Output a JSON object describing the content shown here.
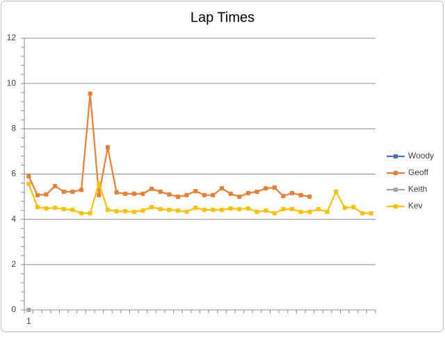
{
  "chart_data": {
    "type": "line",
    "title": "Lap Times",
    "categories": [
      "1",
      null,
      null,
      null,
      null,
      null,
      null,
      null,
      null,
      null,
      null,
      null,
      null,
      null,
      null,
      null,
      null,
      null,
      null,
      null,
      null,
      null,
      null,
      null,
      null,
      null,
      null,
      null,
      null,
      null,
      null,
      null,
      null,
      null,
      null,
      null,
      null,
      null,
      null,
      null
    ],
    "ylim": [
      0,
      12
    ],
    "yticks": [
      0,
      2,
      4,
      6,
      8,
      10,
      12
    ],
    "grid": true,
    "legend": "right",
    "series": [
      {
        "name": "Woody",
        "color": "#4472c4",
        "values": [
          null,
          null,
          null,
          null,
          null,
          null,
          null,
          null,
          null,
          null,
          null,
          null,
          null,
          null,
          null,
          null,
          null,
          null,
          null,
          null,
          null,
          null,
          null,
          null,
          null,
          null,
          null,
          null,
          null,
          null,
          null,
          null,
          null,
          null,
          null,
          null,
          null,
          null,
          null,
          null
        ]
      },
      {
        "name": "Geoff",
        "color": "#ed7d31",
        "values": [
          5.9,
          5.07,
          5.1,
          5.47,
          5.22,
          5.22,
          5.3,
          9.55,
          5.07,
          7.18,
          5.19,
          5.13,
          5.13,
          5.13,
          5.35,
          5.22,
          5.1,
          5.0,
          5.07,
          5.25,
          5.07,
          5.07,
          5.37,
          5.13,
          5.0,
          5.16,
          5.22,
          5.37,
          5.4,
          5.03,
          5.16,
          5.07,
          5.0,
          null,
          null,
          null,
          null,
          null,
          null,
          null
        ]
      },
      {
        "name": "Keith",
        "color": "#a5a5a5",
        "values": [
          0,
          null,
          null,
          null,
          null,
          null,
          null,
          null,
          null,
          null,
          null,
          null,
          null,
          null,
          null,
          null,
          null,
          null,
          null,
          null,
          null,
          null,
          null,
          null,
          null,
          null,
          null,
          null,
          null,
          null,
          null,
          null,
          null,
          null,
          null,
          null,
          null,
          null,
          null,
          null
        ]
      },
      {
        "name": "Kev",
        "color": "#ffc000",
        "values": [
          5.56,
          4.54,
          4.48,
          4.51,
          4.45,
          4.42,
          4.27,
          4.27,
          5.59,
          4.42,
          4.36,
          4.36,
          4.33,
          4.39,
          4.54,
          4.45,
          4.42,
          4.39,
          4.33,
          4.51,
          4.42,
          4.42,
          4.42,
          4.48,
          4.45,
          4.48,
          4.33,
          4.39,
          4.27,
          4.45,
          4.45,
          4.33,
          4.33,
          4.45,
          4.33,
          5.22,
          4.51,
          4.54,
          4.27,
          4.27
        ]
      }
    ]
  }
}
